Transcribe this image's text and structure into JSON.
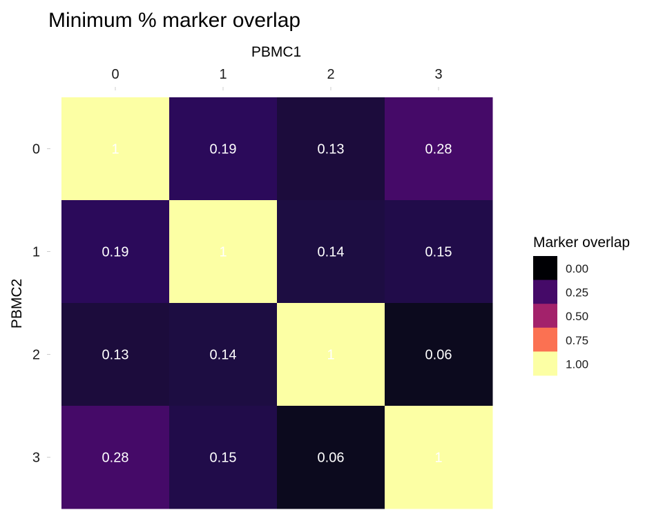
{
  "chart_data": {
    "type": "heatmap",
    "title": "Minimum % marker overlap",
    "xlabel": "PBMC1",
    "ylabel": "PBMC2",
    "x_categories": [
      "0",
      "1",
      "2",
      "3"
    ],
    "y_categories": [
      "0",
      "1",
      "2",
      "3"
    ],
    "x_axis_position": "top",
    "values": [
      [
        1,
        0.19,
        0.13,
        0.28
      ],
      [
        0.19,
        1,
        0.14,
        0.15
      ],
      [
        0.13,
        0.14,
        1,
        0.06
      ],
      [
        0.28,
        0.15,
        0.06,
        1
      ]
    ],
    "cell_labels": [
      [
        "1",
        "0.19",
        "0.13",
        "0.28"
      ],
      [
        "0.19",
        "1",
        "0.14",
        "0.15"
      ],
      [
        "0.13",
        "0.14",
        "1",
        "0.06"
      ],
      [
        "0.28",
        "0.15",
        "0.06",
        "1"
      ]
    ],
    "color_scale": {
      "name": "inferno",
      "limits": [
        0,
        1
      ],
      "stops": [
        "#000004",
        "#420a68",
        "#932667",
        "#dd513a",
        "#fca50a",
        "#fcffa4"
      ]
    },
    "cell_colors": [
      [
        "#fcffa4",
        "#2b0a5a",
        "#1c0c3c",
        "#450a68"
      ],
      [
        "#2b0a5a",
        "#fcffa4",
        "#1d0d42",
        "#210c4a"
      ],
      [
        "#1c0c3c",
        "#1d0d42",
        "#fcffa4",
        "#0c0a1e"
      ],
      [
        "#450a68",
        "#210c4a",
        "#0c0a1e",
        "#fcffa4"
      ]
    ],
    "legend": {
      "title": "Marker overlap",
      "position": "right",
      "entries": [
        {
          "label": "0.00",
          "color": "#000004"
        },
        {
          "label": "0.25",
          "color": "#450a68"
        },
        {
          "label": "0.50",
          "color": "#a3226b"
        },
        {
          "label": "0.75",
          "color": "#fb7152"
        },
        {
          "label": "1.00",
          "color": "#fcffa4"
        }
      ]
    },
    "grid": false
  }
}
